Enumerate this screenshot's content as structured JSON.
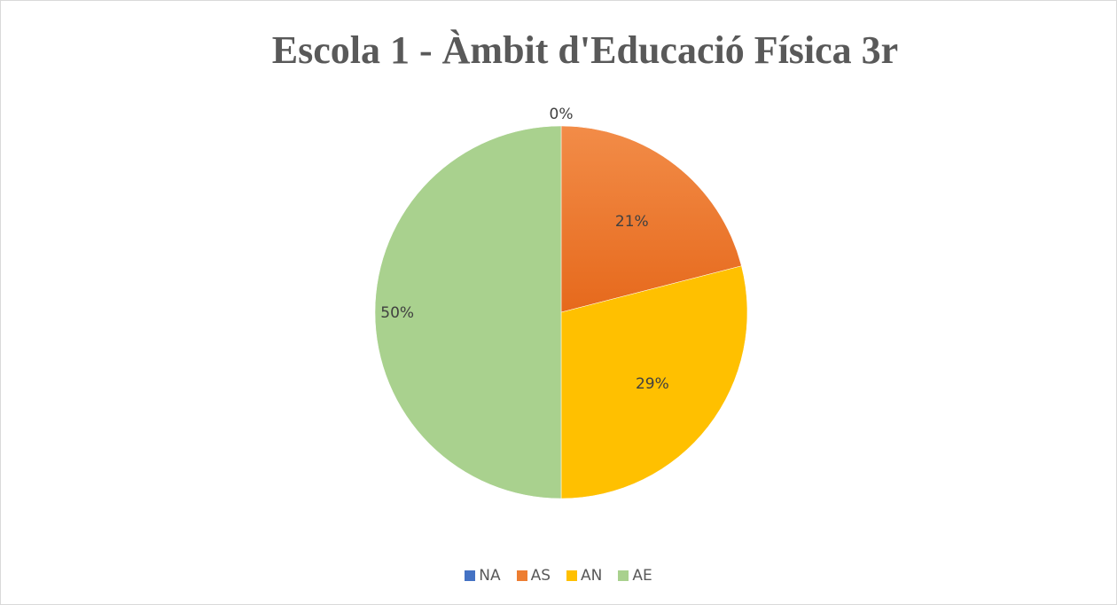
{
  "chart_data": {
    "type": "pie",
    "title": "Escola 1 - Àmbit d'Educació Física 3r",
    "categories": [
      "NA",
      "AS",
      "AN",
      "AE"
    ],
    "values": [
      0,
      21,
      29,
      50
    ],
    "data_labels": [
      "0%",
      "21%",
      "29%",
      "50%"
    ],
    "colors": [
      "#4472c4",
      "#ed7d31",
      "#ffc000",
      "#a9d18e"
    ],
    "legend_position": "bottom"
  }
}
